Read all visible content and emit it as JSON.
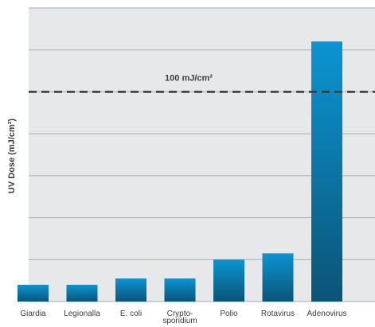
{
  "chart_data": {
    "type": "bar",
    "ylabel": "UV Dose (mJ/cm²)",
    "categories": [
      "Giardia",
      "Legionalla",
      "E. coli",
      "Crypto-\nsporidium",
      "Polio",
      "Rotavirus",
      "Adenovirus"
    ],
    "values": [
      8,
      8,
      11,
      11,
      20,
      23,
      124
    ],
    "ylim": [
      0,
      140
    ],
    "grid": true,
    "reference_line": {
      "value": 100,
      "label": "100 mJ/cm²",
      "style": "dashed"
    },
    "colors": {
      "plot_background": "#e7e8ea",
      "grid": "#a9aeb3",
      "bar_top": "#0b95d2",
      "bar_bottom": "#0b5476",
      "reference_line": "#3a3d40",
      "text": "#3a3d40"
    }
  }
}
